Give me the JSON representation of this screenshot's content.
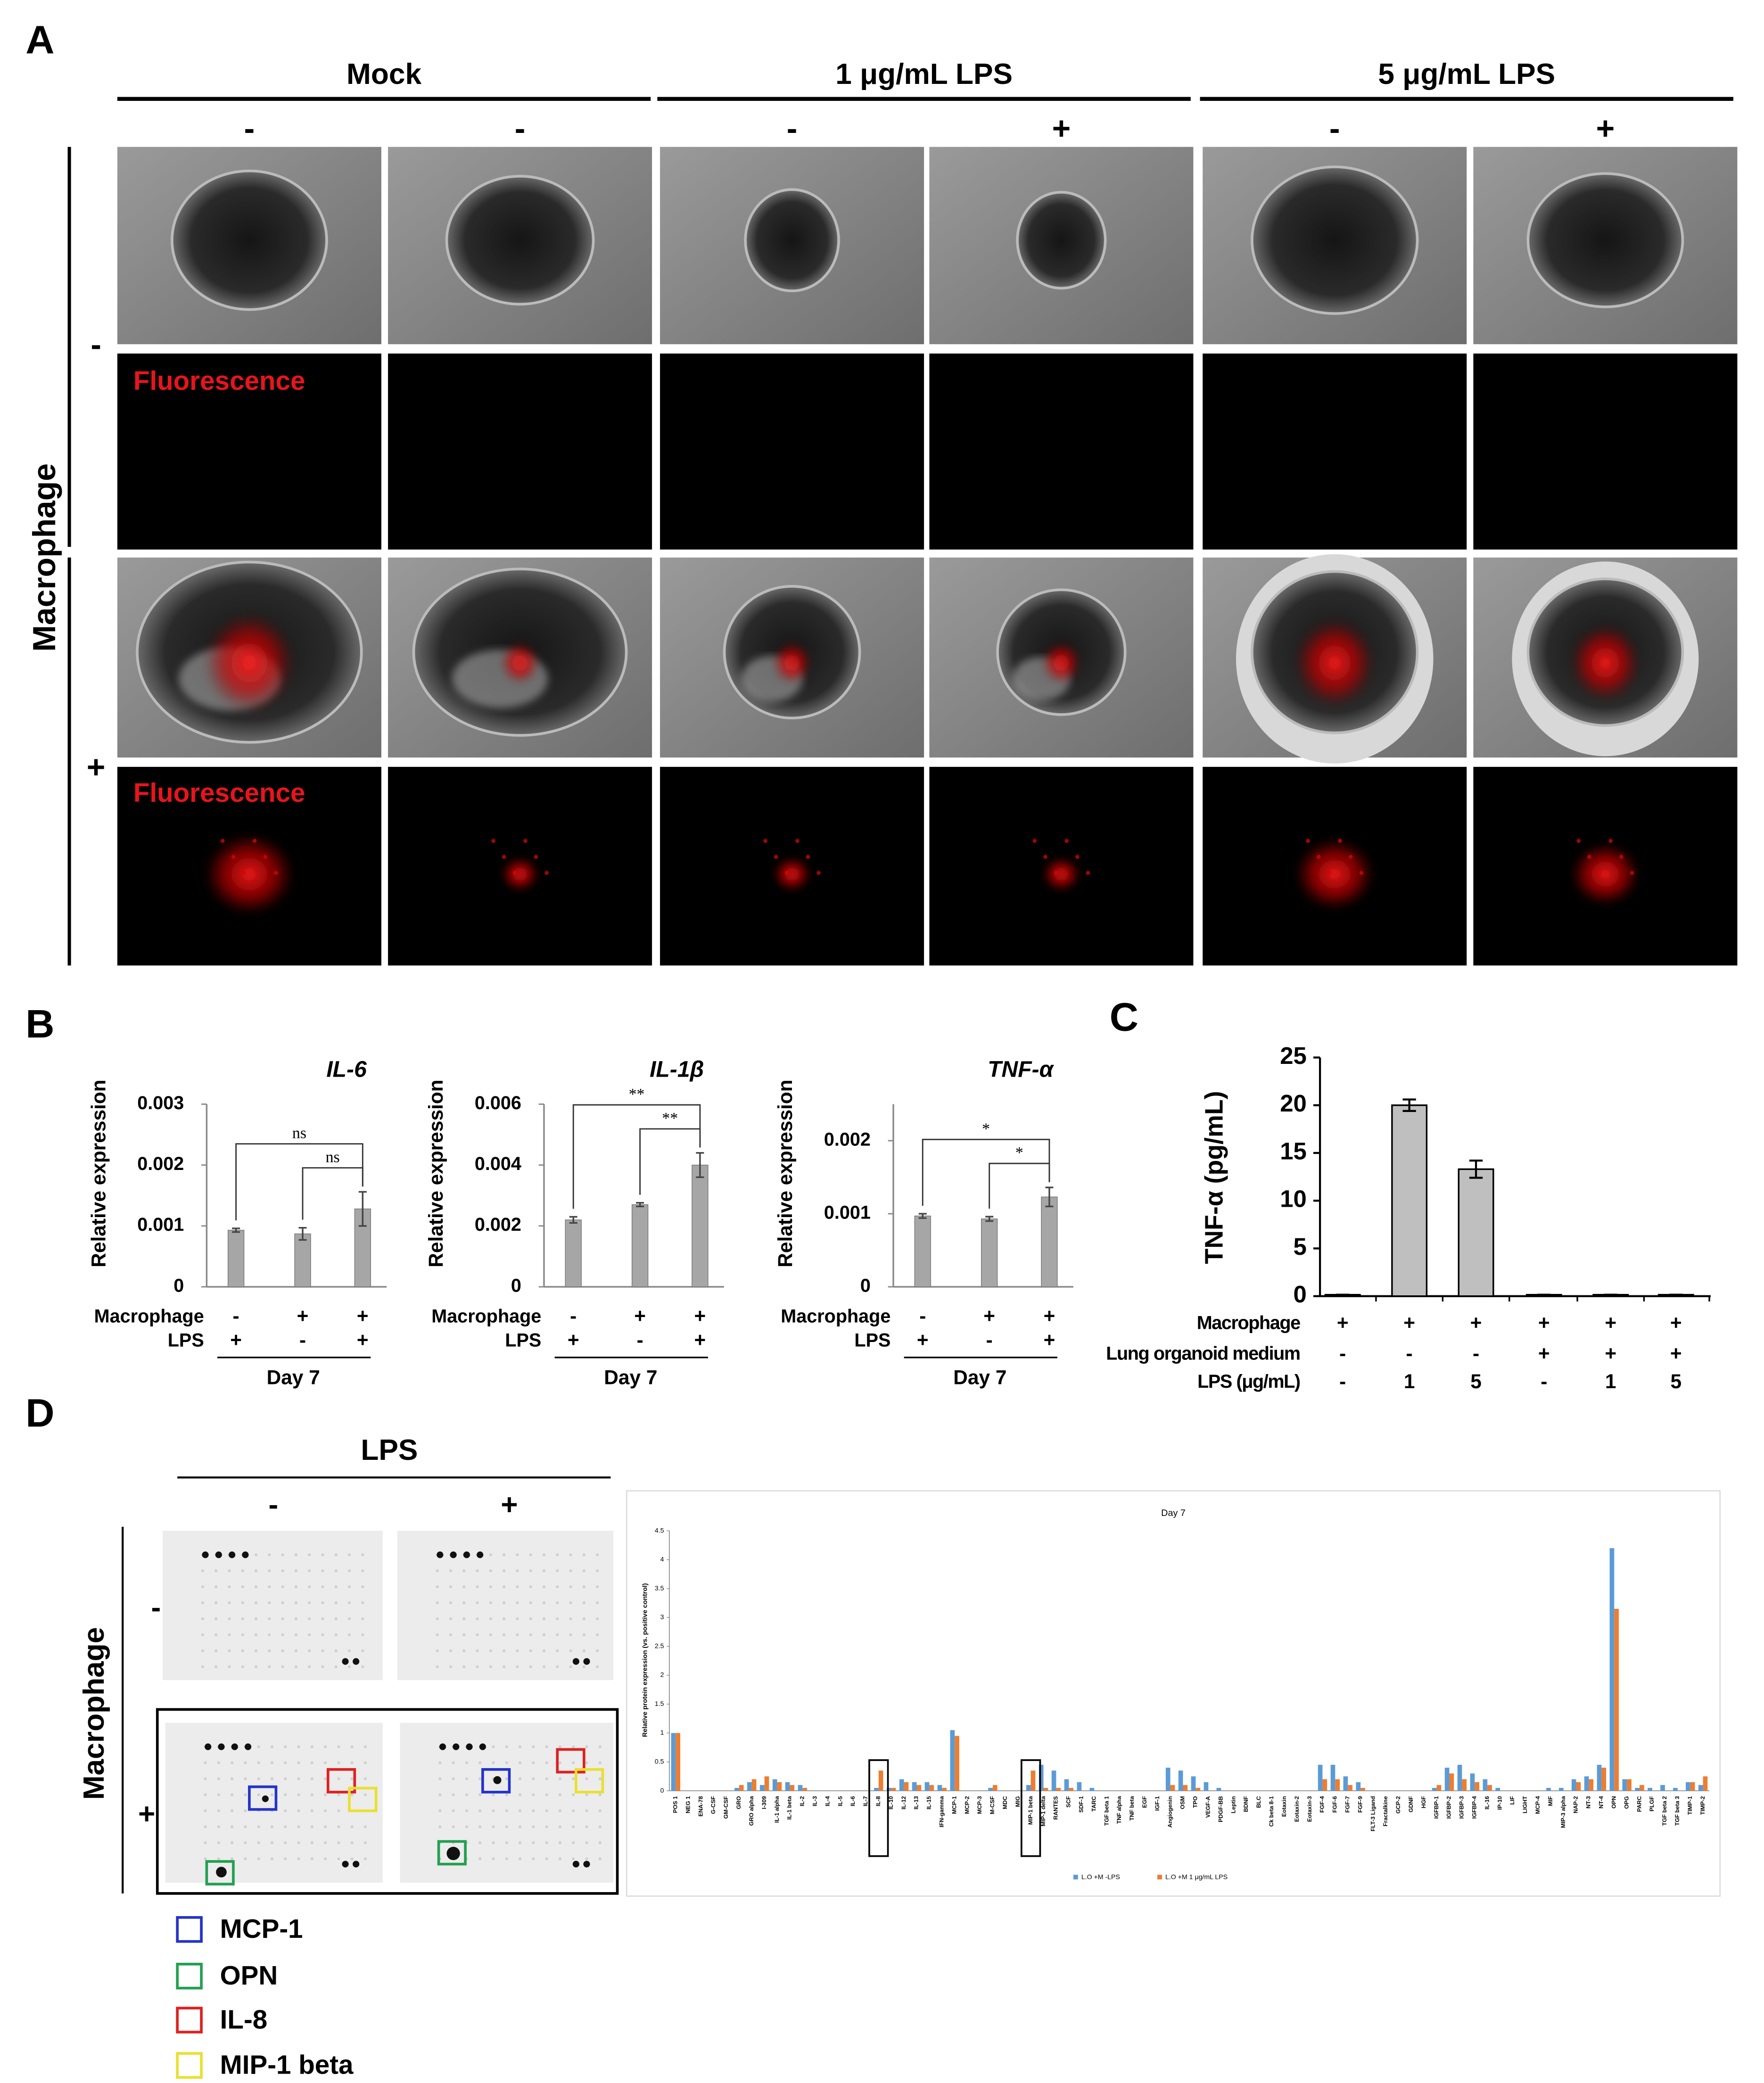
{
  "panel_labels": [
    "A",
    "B",
    "C",
    "D"
  ],
  "panel_a": {
    "groups": [
      "Mock",
      "1 μg/mL LPS",
      "5 μg/mL LPS"
    ],
    "column_signs": [
      "-",
      "-",
      "-",
      "+",
      "-",
      "+"
    ],
    "row_title": "Macrophage",
    "row_signs": [
      "-",
      "+"
    ],
    "image_label": "Fluorescence"
  },
  "chart_data": [
    {
      "type": "bar",
      "title": "IL-6",
      "ylabel": "Relative expression",
      "values": [
        0.00093,
        0.00087,
        0.00128
      ],
      "errors": [
        3e-05,
        0.0001,
        0.00028
      ],
      "color": "#a6a6a6",
      "ylim": [
        0,
        0.003
      ],
      "yticks": [
        0,
        0.001,
        0.002,
        0.003
      ],
      "rows": [
        {
          "label": "Macrophage",
          "signs": [
            "-",
            "+",
            "+"
          ]
        },
        {
          "label": "LPS",
          "signs": [
            "+",
            "-",
            "+"
          ]
        }
      ],
      "xlabel": "Day 7",
      "annotations": [
        "ns",
        "ns"
      ]
    },
    {
      "type": "bar",
      "title": "IL-1β",
      "ylabel": "Relative expression",
      "values": [
        0.0022,
        0.0027,
        0.004
      ],
      "errors": [
        0.0001,
        6e-05,
        0.0004
      ],
      "color": "#a6a6a6",
      "ylim": [
        0,
        0.006
      ],
      "yticks": [
        0,
        0.002,
        0.004,
        0.006
      ],
      "rows": [
        {
          "label": "Macrophage",
          "signs": [
            "-",
            "+",
            "+"
          ]
        },
        {
          "label": "LPS",
          "signs": [
            "+",
            "-",
            "+"
          ]
        }
      ],
      "xlabel": "Day 7",
      "annotations": [
        "**",
        "**"
      ]
    },
    {
      "type": "bar",
      "title": "TNF-α",
      "ylabel": "Relative expression",
      "values": [
        0.00097,
        0.00093,
        0.00123
      ],
      "errors": [
        3e-05,
        3e-05,
        0.00013
      ],
      "color": "#a6a6a6",
      "ylim": [
        0,
        0.0025
      ],
      "yticks": [
        0,
        0.001,
        0.002
      ],
      "rows": [
        {
          "label": "Macrophage",
          "signs": [
            "-",
            "+",
            "+"
          ]
        },
        {
          "label": "LPS",
          "signs": [
            "+",
            "-",
            "+"
          ]
        }
      ],
      "xlabel": "Day 7",
      "annotations": [
        "*",
        "*"
      ]
    },
    {
      "type": "bar",
      "ylabel": "TNF-α (pg/mL)",
      "values": [
        0.15,
        20,
        13.3,
        0.15,
        0.15,
        0.15
      ],
      "errors": [
        0,
        0.6,
        0.9,
        0,
        0,
        0
      ],
      "color": "#bfbfbf",
      "ylim": [
        0,
        25
      ],
      "yticks": [
        0,
        5,
        10,
        15,
        20,
        25
      ],
      "rows": [
        {
          "label": "Macrophage",
          "signs": [
            "+",
            "+",
            "+",
            "+",
            "+",
            "+"
          ]
        },
        {
          "label": "Lung organoid medium",
          "signs": [
            "-",
            "-",
            "-",
            "+",
            "+",
            "+"
          ]
        },
        {
          "label": "LPS (μg/mL)",
          "signs": [
            "-",
            "1",
            "5",
            "-",
            "1",
            "5"
          ]
        }
      ]
    },
    {
      "type": "bar",
      "title": "Day 7",
      "ylabel": "Relative protein expression (vs. positive control)",
      "categories": [
        "POS 1",
        "NEG 1",
        "ENA-78",
        "G-CSF",
        "GM-CSF",
        "GRO",
        "GRO alpha",
        "I-309",
        "IL-1 alpha",
        "IL-1 beta",
        "IL-2",
        "IL-3",
        "IL-4",
        "IL-5",
        "IL-6",
        "IL-7",
        "IL-8",
        "IL-10",
        "IL-12",
        "IL-13",
        "IL-15",
        "IFN-gamma",
        "MCP-1",
        "MCP-2",
        "MCP-3",
        "M-CSF",
        "MDC",
        "MIG",
        "MIP-1 beta",
        "MIP-1 delta",
        "RANTES",
        "SCF",
        "SDF-1",
        "TARC",
        "TGF beta 1",
        "TNF alpha",
        "TNF beta",
        "EGF",
        "IGF-1",
        "Angiogenin",
        "OSM",
        "TPO",
        "VEGF-A",
        "PDGF-BB",
        "Leptin",
        "BDNF",
        "BLC",
        "Ck beta 8-1",
        "Eotaxin",
        "Eotaxin-2",
        "Eotaxin-3",
        "FGF-4",
        "FGF-6",
        "FGF-7",
        "FGF-9",
        "FLT-3 Ligand",
        "Fractalkine",
        "GCP-2",
        "GDNF",
        "HGF",
        "IGFBP-1",
        "IGFBP-2",
        "IGFBP-3",
        "IGFBP-4",
        "IL-16",
        "IP-10",
        "LIF",
        "LIGHT",
        "MCP-4",
        "MIF",
        "MIP-3 alpha",
        "NAP-2",
        "NT-3",
        "NT-4",
        "OPN",
        "OPG",
        "PARC",
        "PLGF",
        "TGF beta 2",
        "TGF beta 3",
        "TIMP-1",
        "TIMP-2"
      ],
      "series": [
        {
          "name": "L.O +M -LPS",
          "color": "#5b9bd5",
          "values": [
            1,
            0,
            0,
            0,
            0,
            0.05,
            0.15,
            0.1,
            0.2,
            0.15,
            0.1,
            0,
            0,
            0,
            0,
            0,
            0.05,
            0.05,
            0.2,
            0.15,
            0.15,
            0.1,
            1.05,
            0,
            0,
            0.05,
            0,
            0,
            0.1,
            0.45,
            0.35,
            0.2,
            0.15,
            0.05,
            0,
            0,
            0,
            0,
            0,
            0.4,
            0.35,
            0.25,
            0.15,
            0.05,
            0,
            0,
            0,
            0,
            0,
            0,
            0,
            0.45,
            0.45,
            0.25,
            0.15,
            0,
            0,
            0,
            0,
            0,
            0.05,
            0.4,
            0.45,
            0.3,
            0.2,
            0.05,
            0,
            0,
            0,
            0.05,
            0.05,
            0.2,
            0.25,
            0.45,
            4.2,
            0.2,
            0.05,
            0.05,
            0.1,
            0.05,
            0.15,
            0.1
          ]
        },
        {
          "name": "L.O +M 1 μg/mL LPS",
          "color": "#ed7d31",
          "values": [
            1,
            0,
            0,
            0,
            0,
            0.1,
            0.2,
            0.25,
            0.15,
            0.1,
            0.05,
            0,
            0,
            0,
            0,
            0,
            0.35,
            0.05,
            0.15,
            0.1,
            0.1,
            0.05,
            0.95,
            0,
            0,
            0.1,
            0,
            0,
            0.35,
            0.05,
            0.05,
            0.05,
            0,
            0,
            0,
            0,
            0,
            0,
            0,
            0.1,
            0.1,
            0.05,
            0,
            0,
            0,
            0,
            0,
            0,
            0,
            0,
            0,
            0.2,
            0.2,
            0.1,
            0.05,
            0,
            0,
            0,
            0,
            0,
            0.1,
            0.3,
            0.2,
            0.15,
            0.1,
            0,
            0,
            0,
            0,
            0,
            0,
            0.15,
            0.2,
            0.4,
            3.15,
            0.2,
            0.1,
            0,
            0,
            0,
            0.15,
            0.25
          ]
        }
      ],
      "ylim": [
        0,
        4.5
      ],
      "yticks": [
        0,
        0.5,
        1,
        1.5,
        2,
        2.5,
        3,
        3.5,
        4,
        4.5
      ]
    }
  ],
  "panel_d": {
    "group_title": "LPS",
    "column_signs": [
      "-",
      "+"
    ],
    "row_title": "Macrophage",
    "row_signs": [
      "-",
      "+"
    ],
    "legend": [
      {
        "name": "MCP-1",
        "color": "#2233cc"
      },
      {
        "name": "OPN",
        "color": "#22a050"
      },
      {
        "name": "IL-8",
        "color": "#e02020"
      },
      {
        "name": "MIP-1 beta",
        "color": "#e8e030"
      }
    ]
  }
}
